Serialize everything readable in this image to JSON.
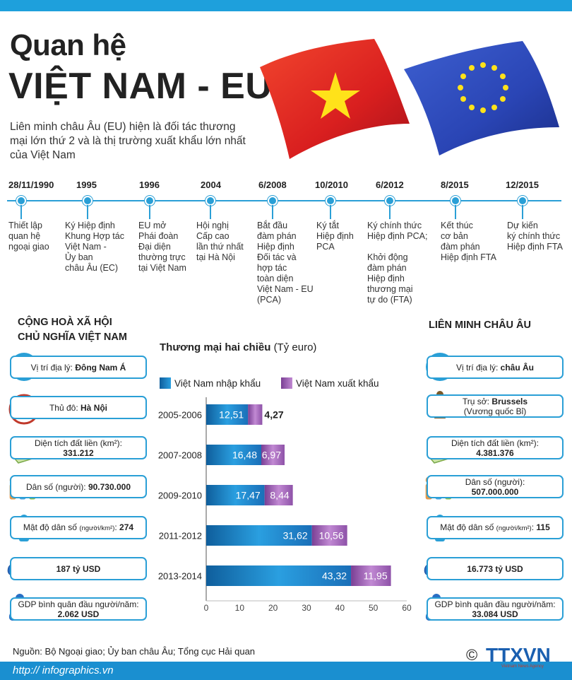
{
  "header": {
    "title_line1": "Quan hệ",
    "title_line2": "VIỆT NAM - EU",
    "intro": "Liên minh châu Âu (EU) hiện là đối tác thương mại lớn thứ 2 và là thị trường xuất khẩu lớn nhất của Việt Nam"
  },
  "timeline": [
    {
      "date": "28/11/1990",
      "text": "Thiết lập\nquan hệ\nngoại giao"
    },
    {
      "date": "1995",
      "text": "Ký Hiệp định\nKhung Hợp tác\nViệt Nam -\nỦy ban\nchâu Âu (EC)"
    },
    {
      "date": "1996",
      "text": "EU mở\nPhái đoàn\nĐại diện\nthường trực\ntại Việt Nam"
    },
    {
      "date": "2004",
      "text": "Hội nghị\nCấp cao\nlần thứ nhất\ntại Hà Nội"
    },
    {
      "date": "6/2008",
      "text": "Bắt đầu\nđàm phán\nHiệp định\nĐối tác và\nhợp tác\ntoàn diện\nViệt Nam - EU\n(PCA)"
    },
    {
      "date": "10/2010",
      "text": "Ký tắt\nHiệp định\nPCA"
    },
    {
      "date": "6/2012",
      "text": "Ký chính thức\nHiệp định PCA;\n\nKhởi động\nđàm phán\nHiệp định\nthương mại\ntự do (FTA)"
    },
    {
      "date": "8/2015",
      "text": "Kết thúc\ncơ bản\nđàm phán\nHiệp định FTA"
    },
    {
      "date": "12/2015",
      "text": "Dự kiến\nký chính thức\nHiệp định FTA"
    }
  ],
  "vietnam": {
    "title_line1": "CỘNG HOÀ XÃ HỘI",
    "title_line2": "CHỦ NGHĨA VIỆT NAM",
    "location_label": "Vị trí địa lý:",
    "location_value": "Đông Nam Á",
    "capital_label": "Thủ đô:",
    "capital_value": "Hà Nội",
    "area_label": "Diện tích đất liền (km²):",
    "area_value": "331.212",
    "population_label": "Dân số (người):",
    "population_value": "90.730.000",
    "density_label": "Mật độ dân số",
    "density_unit": "(người/km²)",
    "density_value": "274",
    "gdp_value": "187 tỷ USD",
    "gdp_per_capita_label": "GDP bình quân đầu người/năm:",
    "gdp_per_capita_value": "2.062 USD"
  },
  "eu": {
    "title": "LIÊN MINH CHÂU ÂU",
    "location_label": "Vị trí địa lý:",
    "location_value": "châu Âu",
    "hq_label": "Trụ sở:",
    "hq_value": "Brussels",
    "hq_country": "(Vương quốc Bỉ)",
    "area_label": "Diện tích đất liền (km²):",
    "area_value": "4.381.376",
    "population_label": "Dân số (người):",
    "population_value": "507.000.000",
    "density_label": "Mật độ dân số",
    "density_unit": "(người/km²)",
    "density_value": "115",
    "gdp_value": "16.773 tỷ USD",
    "gdp_per_capita_label": "GDP bình quân đầu người/năm:",
    "gdp_per_capita_value": "33.084 USD"
  },
  "icons": {
    "gdp_text": "GDP"
  },
  "chart_data": {
    "type": "bar",
    "orientation": "horizontal",
    "stacked": true,
    "title": "Thương mại hai chiều",
    "unit": "(Tỷ euro)",
    "categories": [
      "2005-2006",
      "2007-2008",
      "2009-2010",
      "2011-2012",
      "2013-2014"
    ],
    "series": [
      {
        "name": "Việt Nam nhập khẩu",
        "values": [
          12.51,
          16.48,
          17.47,
          31.62,
          43.32
        ],
        "labels": [
          "12,51",
          "16,48",
          "17,47",
          "31,62",
          "43,32"
        ],
        "color": "#1a7fc4"
      },
      {
        "name": "Việt Nam xuất khẩu",
        "values": [
          4.27,
          6.97,
          8.44,
          10.56,
          11.95
        ],
        "labels": [
          "4,27",
          "6,97",
          "8,44",
          "10,56",
          "11,95"
        ],
        "color": "#9b5bb0"
      }
    ],
    "xlim": [
      0,
      60
    ],
    "xticks": [
      0,
      10,
      20,
      30,
      40,
      50,
      60
    ],
    "legend_position": "top"
  },
  "footer": {
    "source": "Nguồn: Bộ Ngoại giao; Ủy ban châu Âu; Tổng cục Hải quan",
    "url": "http:// infographics.vn",
    "logo_text": "TTXVN",
    "logo_subtext": "Vietnam News Agency",
    "copyright": "©"
  },
  "colors": {
    "accent": "#2a9fd6",
    "bar_blue": "#1a7fc4",
    "bar_purple": "#9b5bb0"
  }
}
